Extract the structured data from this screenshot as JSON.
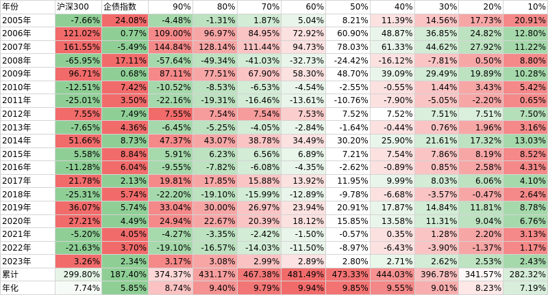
{
  "table": {
    "color_scale": {
      "low": "#8fcf96",
      "mid": "#ffffff",
      "high": "#f26b6b"
    },
    "header": [
      "年份",
      "沪深300",
      "企债指数",
      "90%",
      "80%",
      "70%",
      "60%",
      "50%",
      "40%",
      "30%",
      "20%",
      "10%"
    ],
    "rows": [
      [
        "2005年",
        "-7.66%",
        "24.08%",
        "-4.48%",
        "-1.31%",
        "1.87%",
        "5.04%",
        "8.21%",
        "11.39%",
        "14.56%",
        "17.73%",
        "20.91%"
      ],
      [
        "2006年",
        "121.02%",
        "0.77%",
        "109.00%",
        "96.97%",
        "84.95%",
        "72.92%",
        "60.90%",
        "48.87%",
        "36.85%",
        "24.82%",
        "12.80%"
      ],
      [
        "2007年",
        "161.55%",
        "-5.49%",
        "144.84%",
        "128.14%",
        "111.44%",
        "94.73%",
        "78.03%",
        "61.33%",
        "44.62%",
        "27.92%",
        "11.22%"
      ],
      [
        "2008年",
        "-65.95%",
        "17.11%",
        "-57.64%",
        "-49.34%",
        "-41.03%",
        "-32.73%",
        "-24.42%",
        "-16.12%",
        "-7.81%",
        "0.50%",
        "8.80%"
      ],
      [
        "2009年",
        "96.71%",
        "0.68%",
        "87.11%",
        "77.51%",
        "67.90%",
        "58.30%",
        "48.70%",
        "39.09%",
        "29.49%",
        "19.89%",
        "10.28%"
      ],
      [
        "2010年",
        "-12.51%",
        "7.42%",
        "-10.52%",
        "-8.53%",
        "-6.53%",
        "-4.54%",
        "-2.55%",
        "-0.55%",
        "1.44%",
        "3.43%",
        "5.42%"
      ],
      [
        "2011年",
        "-25.01%",
        "3.50%",
        "-22.16%",
        "-19.31%",
        "-16.46%",
        "-13.61%",
        "-10.76%",
        "-7.90%",
        "-5.05%",
        "-2.20%",
        "0.65%"
      ],
      [
        "2012年",
        "7.55%",
        "7.49%",
        "7.55%",
        "7.54%",
        "7.54%",
        "7.53%",
        "7.52%",
        "7.52%",
        "7.51%",
        "7.51%",
        "7.50%"
      ],
      [
        "2013年",
        "-7.65%",
        "4.36%",
        "-6.45%",
        "-5.25%",
        "-4.05%",
        "-2.84%",
        "-1.64%",
        "-0.44%",
        "0.76%",
        "1.96%",
        "3.16%"
      ],
      [
        "2014年",
        "51.66%",
        "8.73%",
        "47.37%",
        "43.07%",
        "38.78%",
        "34.49%",
        "30.20%",
        "25.90%",
        "21.61%",
        "17.32%",
        "13.03%"
      ],
      [
        "2015年",
        "5.58%",
        "8.84%",
        "5.91%",
        "6.23%",
        "6.56%",
        "6.89%",
        "7.21%",
        "7.54%",
        "7.86%",
        "8.19%",
        "8.52%"
      ],
      [
        "2016年",
        "-11.28%",
        "6.04%",
        "-9.55%",
        "-7.82%",
        "-6.08%",
        "-4.35%",
        "-2.62%",
        "-0.89%",
        "0.85%",
        "2.58%",
        "4.31%"
      ],
      [
        "2017年",
        "21.78%",
        "2.13%",
        "19.81%",
        "17.85%",
        "15.88%",
        "13.92%",
        "11.95%",
        "9.99%",
        "8.03%",
        "6.06%",
        "4.10%"
      ],
      [
        "2018年",
        "-25.31%",
        "5.74%",
        "-22.20%",
        "-19.10%",
        "-15.99%",
        "-12.89%",
        "-9.78%",
        "-6.68%",
        "-3.57%",
        "-0.47%",
        "2.64%"
      ],
      [
        "2019年",
        "36.07%",
        "5.74%",
        "33.04%",
        "30.00%",
        "26.97%",
        "23.94%",
        "20.91%",
        "17.87%",
        "14.84%",
        "11.81%",
        "8.78%"
      ],
      [
        "2020年",
        "27.21%",
        "4.49%",
        "24.94%",
        "22.67%",
        "20.39%",
        "18.12%",
        "15.85%",
        "13.58%",
        "11.31%",
        "9.04%",
        "6.76%"
      ],
      [
        "2021年",
        "-5.20%",
        "4.05%",
        "-4.27%",
        "-3.35%",
        "-2.42%",
        "-1.50%",
        "-0.57%",
        "0.35%",
        "1.28%",
        "2.20%",
        "3.13%"
      ],
      [
        "2022年",
        "-21.63%",
        "3.70%",
        "-19.10%",
        "-16.57%",
        "-14.03%",
        "-11.50%",
        "-8.97%",
        "-6.43%",
        "-3.90%",
        "-1.37%",
        "1.17%"
      ],
      [
        "2023年",
        "3.26%",
        "2.34%",
        "3.17%",
        "3.08%",
        "2.99%",
        "2.89%",
        "2.80%",
        "2.71%",
        "2.62%",
        "2.53%",
        "2.43%"
      ],
      [
        "累计",
        "299.80%",
        "187.40%",
        "374.37%",
        "431.17%",
        "467.38%",
        "481.49%",
        "473.33%",
        "444.03%",
        "396.78%",
        "341.57%",
        "282.32%"
      ],
      [
        "年化",
        "7.74%",
        "5.85%",
        "8.74%",
        "9.40%",
        "9.79%",
        "9.94%",
        "9.85%",
        "9.55%",
        "9.01%",
        "8.23%",
        "7.19%"
      ]
    ]
  }
}
